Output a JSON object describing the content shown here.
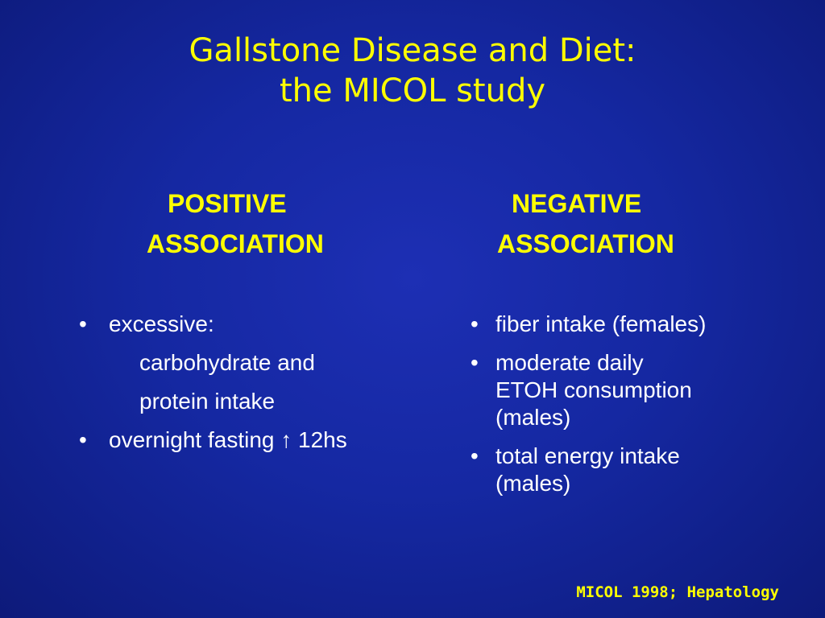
{
  "slide": {
    "title_line1": "Gallstone Disease and Diet:",
    "title_line2": "the MICOL study",
    "positive": {
      "heading_line1": "POSITIVE",
      "heading_line2": "ASSOCIATION",
      "items": [
        {
          "bullet": "•",
          "text": "excessive:"
        },
        {
          "bullet": "",
          "text": "carbohydrate and"
        },
        {
          "bullet": "",
          "text": "protein intake"
        },
        {
          "bullet": "•",
          "text": "overnight fasting ↑ 12hs"
        }
      ]
    },
    "negative": {
      "heading_line1": "NEGATIVE",
      "heading_line2": "ASSOCIATION",
      "items": [
        {
          "bullet": "•",
          "lines": [
            "fiber intake (females)"
          ]
        },
        {
          "bullet": "•",
          "lines": [
            "moderate daily",
            "ETOH consumption",
            "(males)"
          ]
        },
        {
          "bullet": "•",
          "lines": [
            "total energy intake",
            "(males)"
          ]
        }
      ]
    },
    "citation": "MICOL 1998; Hepatology"
  }
}
